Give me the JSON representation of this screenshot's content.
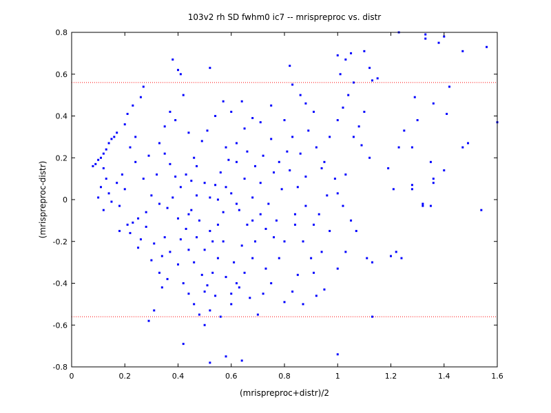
{
  "chart_data": {
    "type": "scatter",
    "title": "103v2 rh SD fwhm0 ic7 -- mrispreproc vs. distr",
    "xlabel": "(mrispreproc+distr)/2",
    "ylabel": "(mrispreproc-distr)",
    "xlim": [
      0,
      1.6
    ],
    "ylim": [
      -0.8,
      0.8
    ],
    "xticks": [
      "0",
      "0.2",
      "0.4",
      "0.6",
      "0.8",
      "1",
      "1.2",
      "1.4",
      "1.6"
    ],
    "yticks": [
      "0.8",
      "0.6",
      "0.4",
      "0.2",
      "0",
      "-0.2",
      "-0.4",
      "-0.6",
      "-0.8"
    ],
    "reference_lines": [
      0.56,
      -0.56
    ],
    "grid": false,
    "colors": {
      "points": "#0000ff",
      "reference_lines": "#ff0000",
      "axes": "#000000"
    },
    "points": [
      [
        0.08,
        0.16
      ],
      [
        0.09,
        0.17
      ],
      [
        0.1,
        0.19
      ],
      [
        0.11,
        0.2
      ],
      [
        0.12,
        0.22
      ],
      [
        0.13,
        0.24
      ],
      [
        0.14,
        0.27
      ],
      [
        0.15,
        0.29
      ],
      [
        0.16,
        0.3
      ],
      [
        0.17,
        0.32
      ],
      [
        0.12,
        0.15
      ],
      [
        0.13,
        0.1
      ],
      [
        0.11,
        0.06
      ],
      [
        0.14,
        0.03
      ],
      [
        0.1,
        0.01
      ],
      [
        0.15,
        -0.01
      ],
      [
        0.12,
        -0.05
      ],
      [
        0.17,
        0.08
      ],
      [
        0.19,
        0.12
      ],
      [
        0.2,
        0.36
      ],
      [
        0.21,
        0.41
      ],
      [
        0.23,
        0.45
      ],
      [
        0.26,
        0.49
      ],
      [
        0.27,
        0.54
      ],
      [
        0.22,
        0.25
      ],
      [
        0.24,
        0.18
      ],
      [
        0.2,
        0.05
      ],
      [
        0.18,
        -0.03
      ],
      [
        0.21,
        -0.12
      ],
      [
        0.22,
        -0.16
      ],
      [
        0.25,
        -0.09
      ],
      [
        0.27,
        0.1
      ],
      [
        0.24,
        0.3
      ],
      [
        0.29,
        0.21
      ],
      [
        0.3,
        0.02
      ],
      [
        0.28,
        -0.06
      ],
      [
        0.25,
        -0.23
      ],
      [
        0.3,
        -0.29
      ],
      [
        0.29,
        -0.58
      ],
      [
        0.31,
        -0.53
      ],
      [
        0.33,
        -0.35
      ],
      [
        0.34,
        -0.42
      ],
      [
        0.36,
        -0.38
      ],
      [
        0.35,
        0.35
      ],
      [
        0.37,
        0.42
      ],
      [
        0.38,
        0.67
      ],
      [
        0.4,
        0.62
      ],
      [
        0.41,
        0.6
      ],
      [
        0.42,
        0.5
      ],
      [
        0.44,
        0.32
      ],
      [
        0.39,
        0.38
      ],
      [
        0.32,
        0.12
      ],
      [
        0.33,
        -0.02
      ],
      [
        0.35,
        -0.18
      ],
      [
        0.37,
        -0.25
      ],
      [
        0.4,
        -0.31
      ],
      [
        0.42,
        -0.4
      ],
      [
        0.44,
        -0.45
      ],
      [
        0.46,
        -0.5
      ],
      [
        0.48,
        -0.55
      ],
      [
        0.5,
        -0.6
      ],
      [
        0.52,
        -0.53
      ],
      [
        0.5,
        -0.44
      ],
      [
        0.53,
        -0.35
      ],
      [
        0.55,
        -0.28
      ],
      [
        0.57,
        -0.2
      ],
      [
        0.52,
        -0.15
      ],
      [
        0.48,
        -0.1
      ],
      [
        0.45,
        -0.05
      ],
      [
        0.47,
        0.02
      ],
      [
        0.5,
        0.08
      ],
      [
        0.43,
        0.12
      ],
      [
        0.46,
        0.2
      ],
      [
        0.49,
        0.28
      ],
      [
        0.51,
        0.33
      ],
      [
        0.54,
        0.4
      ],
      [
        0.57,
        0.47
      ],
      [
        0.6,
        0.42
      ],
      [
        0.64,
        0.47
      ],
      [
        0.52,
        0.63
      ],
      [
        0.58,
        0.25
      ],
      [
        0.62,
        0.18
      ],
      [
        0.65,
        0.1
      ],
      [
        0.6,
        0.03
      ],
      [
        0.63,
        -0.05
      ],
      [
        0.66,
        -0.12
      ],
      [
        0.69,
        -0.2
      ],
      [
        0.61,
        -0.3
      ],
      [
        0.58,
        -0.37
      ],
      [
        0.63,
        -0.42
      ],
      [
        0.67,
        -0.47
      ],
      [
        0.56,
        -0.56
      ],
      [
        0.6,
        -0.5
      ],
      [
        0.58,
        -0.75
      ],
      [
        0.52,
        -0.78
      ],
      [
        0.64,
        -0.77
      ],
      [
        0.42,
        -0.69
      ],
      [
        0.7,
        -0.55
      ],
      [
        0.72,
        -0.45
      ],
      [
        0.75,
        -0.4
      ],
      [
        0.73,
        -0.33
      ],
      [
        0.78,
        -0.28
      ],
      [
        0.8,
        -0.2
      ],
      [
        0.77,
        -0.1
      ],
      [
        0.74,
        -0.02
      ],
      [
        0.79,
        0.05
      ],
      [
        0.76,
        0.13
      ],
      [
        0.72,
        0.21
      ],
      [
        0.75,
        0.29
      ],
      [
        0.71,
        0.37
      ],
      [
        0.75,
        0.45
      ],
      [
        0.8,
        0.38
      ],
      [
        0.83,
        0.3
      ],
      [
        0.86,
        0.22
      ],
      [
        0.82,
        0.14
      ],
      [
        0.85,
        0.06
      ],
      [
        0.88,
        -0.03
      ],
      [
        0.84,
        -0.12
      ],
      [
        0.87,
        -0.2
      ],
      [
        0.9,
        -0.28
      ],
      [
        0.85,
        -0.36
      ],
      [
        0.83,
        -0.44
      ],
      [
        0.8,
        -0.49
      ],
      [
        0.87,
        -0.5
      ],
      [
        0.92,
        -0.46
      ],
      [
        0.95,
        -0.43
      ],
      [
        0.91,
        -0.35
      ],
      [
        0.94,
        -0.25
      ],
      [
        0.97,
        -0.15
      ],
      [
        0.93,
        -0.07
      ],
      [
        0.96,
        0.02
      ],
      [
        0.99,
        0.1
      ],
      [
        0.95,
        0.18
      ],
      [
        0.92,
        0.25
      ],
      [
        0.89,
        0.33
      ],
      [
        0.91,
        0.42
      ],
      [
        0.86,
        0.5
      ],
      [
        0.83,
        0.55
      ],
      [
        0.82,
        0.64
      ],
      [
        0.88,
        0.46
      ],
      [
        0.97,
        0.3
      ],
      [
        1.0,
        0.38
      ],
      [
        1.02,
        0.44
      ],
      [
        1.04,
        0.5
      ],
      [
        1.06,
        0.56
      ],
      [
        1.0,
        0.69
      ],
      [
        1.01,
        0.6
      ],
      [
        1.03,
        0.67
      ],
      [
        1.05,
        0.7
      ],
      [
        1.1,
        0.71
      ],
      [
        1.12,
        0.63
      ],
      [
        1.13,
        0.57
      ],
      [
        1.15,
        0.58
      ],
      [
        1.1,
        0.42
      ],
      [
        1.08,
        0.35
      ],
      [
        1.06,
        0.3
      ],
      [
        1.09,
        0.26
      ],
      [
        1.12,
        0.2
      ],
      [
        1.03,
        0.12
      ],
      [
        1.0,
        0.03
      ],
      [
        1.02,
        -0.03
      ],
      [
        1.05,
        -0.1
      ],
      [
        1.07,
        -0.15
      ],
      [
        1.03,
        -0.25
      ],
      [
        1.0,
        -0.33
      ],
      [
        1.11,
        -0.28
      ],
      [
        1.13,
        -0.3
      ],
      [
        1.0,
        -0.74
      ],
      [
        1.13,
        -0.56
      ],
      [
        1.2,
        -0.27
      ],
      [
        1.22,
        -0.25
      ],
      [
        1.24,
        -0.28
      ],
      [
        1.19,
        0.15
      ],
      [
        1.21,
        0.05
      ],
      [
        1.23,
        0.25
      ],
      [
        1.25,
        0.33
      ],
      [
        1.3,
        0.38
      ],
      [
        1.29,
        0.49
      ],
      [
        1.23,
        0.8
      ],
      [
        1.33,
        0.79
      ],
      [
        1.33,
        0.77
      ],
      [
        1.38,
        0.75
      ],
      [
        1.4,
        0.78
      ],
      [
        1.47,
        0.71
      ],
      [
        1.56,
        0.73
      ],
      [
        1.6,
        0.37
      ],
      [
        1.42,
        0.54
      ],
      [
        1.41,
        0.41
      ],
      [
        1.36,
        0.46
      ],
      [
        1.35,
        0.18
      ],
      [
        1.36,
        0.1
      ],
      [
        1.4,
        0.14
      ],
      [
        1.36,
        0.08
      ],
      [
        1.32,
        -0.02
      ],
      [
        1.28,
        0.07
      ],
      [
        1.32,
        -0.03
      ],
      [
        1.28,
        0.25
      ],
      [
        1.35,
        -0.03
      ],
      [
        1.47,
        0.25
      ],
      [
        1.49,
        0.27
      ],
      [
        1.54,
        -0.05
      ],
      [
        1.28,
        0.05
      ],
      [
        0.33,
        0.27
      ],
      [
        0.35,
        0.22
      ],
      [
        0.37,
        0.17
      ],
      [
        0.39,
        0.11
      ],
      [
        0.41,
        0.06
      ],
      [
        0.38,
        0.01
      ],
      [
        0.36,
        -0.04
      ],
      [
        0.4,
        -0.09
      ],
      [
        0.43,
        -0.14
      ],
      [
        0.41,
        -0.19
      ],
      [
        0.44,
        -0.24
      ],
      [
        0.46,
        -0.3
      ],
      [
        0.49,
        -0.36
      ],
      [
        0.51,
        -0.41
      ],
      [
        0.54,
        -0.46
      ],
      [
        0.47,
        -0.18
      ],
      [
        0.5,
        -0.24
      ],
      [
        0.53,
        -0.2
      ],
      [
        0.55,
        -0.12
      ],
      [
        0.57,
        -0.06
      ],
      [
        0.55,
        0.0
      ],
      [
        0.58,
        0.06
      ],
      [
        0.56,
        0.13
      ],
      [
        0.59,
        0.19
      ],
      [
        0.62,
        0.27
      ],
      [
        0.65,
        0.34
      ],
      [
        0.68,
        0.39
      ],
      [
        0.66,
        0.23
      ],
      [
        0.69,
        0.16
      ],
      [
        0.71,
        0.08
      ],
      [
        0.68,
        0.01
      ],
      [
        0.71,
        -0.07
      ],
      [
        0.73,
        -0.14
      ],
      [
        0.68,
        -0.28
      ],
      [
        0.65,
        -0.35
      ],
      [
        0.62,
        -0.4
      ],
      [
        0.6,
        -0.45
      ],
      [
        0.68,
        -0.1
      ],
      [
        0.45,
        0.09
      ],
      [
        0.47,
        0.16
      ],
      [
        0.44,
        -0.07
      ],
      [
        0.52,
        0.01
      ],
      [
        0.54,
        0.07
      ],
      [
        0.62,
        -0.02
      ],
      [
        0.64,
        -0.22
      ],
      [
        0.76,
        -0.18
      ],
      [
        0.78,
        0.18
      ],
      [
        0.81,
        0.23
      ],
      [
        0.84,
        -0.07
      ],
      [
        0.88,
        0.11
      ],
      [
        0.91,
        -0.12
      ],
      [
        0.94,
        0.15
      ],
      [
        0.18,
        -0.15
      ],
      [
        0.23,
        -0.11
      ],
      [
        0.26,
        -0.19
      ],
      [
        0.28,
        -0.13
      ],
      [
        0.31,
        -0.21
      ],
      [
        0.34,
        -0.27
      ]
    ]
  }
}
